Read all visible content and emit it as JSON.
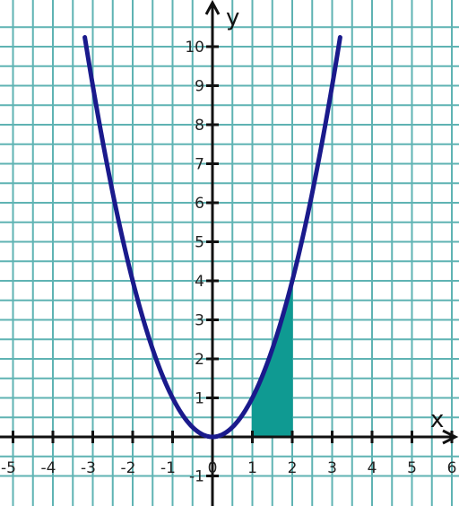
{
  "chart_data": {
    "type": "line",
    "title": "",
    "xlabel": "x",
    "ylabel": "y",
    "xlim": [
      -5.4,
      6.2
    ],
    "ylim": [
      -1.2,
      10.8
    ],
    "grid": true,
    "legend": "none",
    "x_ticks": [
      -5,
      -4,
      -3,
      -2,
      -1,
      0,
      1,
      2,
      3,
      4,
      5,
      6
    ],
    "x_tick_labels": [
      "-5",
      "-4",
      "-3",
      "-2",
      "-1",
      "0",
      "1",
      "2",
      "3",
      "4",
      "5",
      "6"
    ],
    "y_ticks": [
      -1,
      1,
      2,
      3,
      4,
      5,
      6,
      7,
      8,
      9,
      10
    ],
    "y_tick_labels": [
      "-1",
      "1",
      "2",
      "3",
      "4",
      "5",
      "6",
      "7",
      "8",
      "9",
      "10"
    ],
    "series": [
      {
        "function": "y = x^2",
        "x": [
          -3.2,
          -3,
          -2.5,
          -2,
          -1.5,
          -1,
          -0.5,
          0,
          0.5,
          1,
          1.5,
          2,
          2.5,
          3,
          3.2
        ],
        "y": [
          10.24,
          9,
          6.25,
          4,
          2.25,
          1,
          0.25,
          0,
          0.25,
          1,
          2.25,
          4,
          6.25,
          9,
          10.24
        ],
        "color": "#1a1a8c"
      }
    ],
    "shaded_region": {
      "description_function": "y = x^2",
      "x_from": 1,
      "x_to": 2,
      "color": "#0f9a92"
    }
  }
}
